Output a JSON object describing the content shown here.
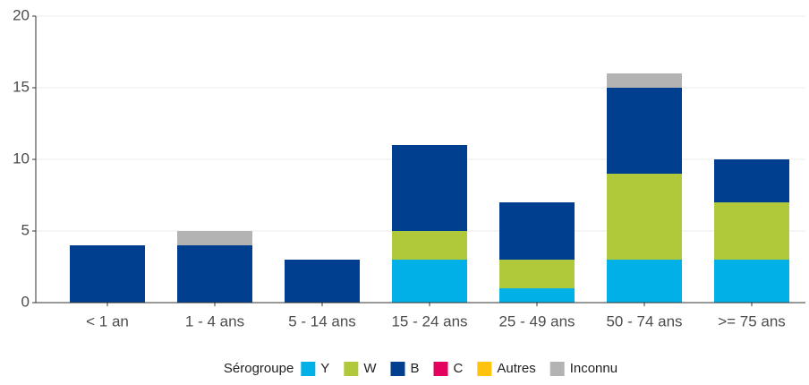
{
  "chart_data": {
    "type": "stacked_bar",
    "categories": [
      "< 1 an",
      "1 - 4 ans",
      "5 - 14 ans",
      "15 - 24 ans",
      "25 - 49 ans",
      "50 - 74 ans",
      ">= 75 ans"
    ],
    "legend_title": "Sérogroupe",
    "series": [
      {
        "name": "Y",
        "color": "#00b0e6",
        "values": [
          0,
          0,
          0,
          3,
          1,
          3,
          3
        ]
      },
      {
        "name": "W",
        "color": "#afc93b",
        "values": [
          0,
          0,
          0,
          2,
          2,
          6,
          4
        ]
      },
      {
        "name": "B",
        "color": "#003f8f",
        "values": [
          4,
          4,
          3,
          6,
          4,
          6,
          3
        ]
      },
      {
        "name": "C",
        "color": "#e4005e",
        "values": [
          0,
          0,
          0,
          0,
          0,
          0,
          0
        ]
      },
      {
        "name": "Autres",
        "color": "#ffc20e",
        "values": [
          0,
          0,
          0,
          0,
          0,
          0,
          0
        ]
      },
      {
        "name": "Inconnu",
        "color": "#b3b3b3",
        "values": [
          0,
          1,
          0,
          0,
          0,
          1,
          0
        ]
      }
    ],
    "ylim": [
      0,
      20
    ],
    "yticks": [
      0,
      5,
      10,
      15,
      20
    ],
    "grid": true,
    "legend": "bottom"
  }
}
